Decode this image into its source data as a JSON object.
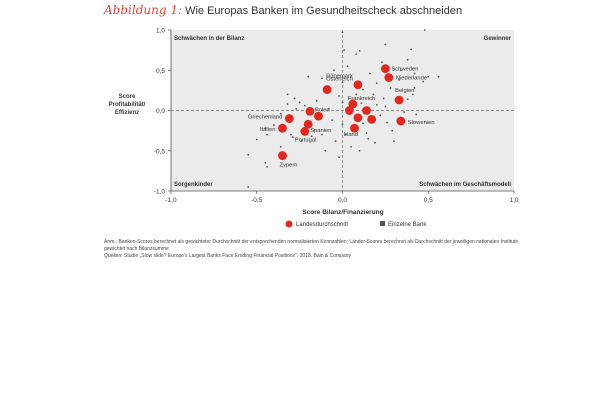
{
  "header": {
    "figure_label": "Abbildung 1:",
    "title": "Wie Europas Banken im Gesundheitscheck abschneiden"
  },
  "notes": {
    "line1": "Anm.: Banken-Scores berechnet als gewichteter Durchschnitt der entsprechenden normalisierten Kennzahlen; Länder-Scores berechnet als Durchschnitt der jeweiligen nationalen Institute, gewichtet nach Bilanzsumme",
    "line2": "Quellen: Studie „Slow slide? Europe's Largest Banks Face Eroding Financial Positions\", 2018, Bain & Company"
  },
  "colors": {
    "plot_bg": "#ebebeb",
    "country": "#e0281e",
    "bank": "#555555",
    "accent": "#e0463c"
  },
  "chart_data": {
    "type": "scatter",
    "xlabel": "Score Bilanz/Finanzierung",
    "ylabel": "Score Profitabilität/ Effizienz",
    "xlim": [
      -1.0,
      1.0
    ],
    "ylim": [
      -1.0,
      1.0
    ],
    "xticks": [
      "-1,0",
      "-0,5",
      "0,0",
      "0,5",
      "1,0"
    ],
    "yticks": [
      "1,0",
      "0,5",
      "0,0",
      "-0,5",
      "-1,0"
    ],
    "quadrant_labels": {
      "top_left": "Schwächen in der Bilanz",
      "top_right": "Gewinner",
      "bottom_left": "Sorgenkinder",
      "bottom_right": "Schwächen im Geschäftsmodell"
    },
    "legend": {
      "countries": "Landesdurchschnitt",
      "banks": "Einzelne Bank"
    },
    "series": [
      {
        "name": "Landesdurchschnitt",
        "points": [
          {
            "label": "Schweden",
            "x": 0.25,
            "y": 0.52
          },
          {
            "label": "Dänemark",
            "x": 0.09,
            "y": 0.32
          },
          {
            "label": "Niederlande",
            "x": 0.27,
            "y": 0.41
          },
          {
            "label": "Österreich",
            "x": -0.09,
            "y": 0.26
          },
          {
            "label": "Belgien",
            "x": 0.33,
            "y": 0.13
          },
          {
            "label": "Frankreich",
            "x": 0.06,
            "y": 0.08
          },
          {
            "label": "Polen",
            "x": -0.19,
            "y": -0.01
          },
          {
            "label": "",
            "x": 0.04,
            "y": 0.0
          },
          {
            "label": "",
            "x": 0.14,
            "y": 0.0
          },
          {
            "label": "Griechenland",
            "x": -0.31,
            "y": -0.1
          },
          {
            "label": "",
            "x": -0.14,
            "y": -0.07
          },
          {
            "label": "",
            "x": 0.09,
            "y": -0.09
          },
          {
            "label": "",
            "x": 0.17,
            "y": -0.11
          },
          {
            "label": "Slowenien",
            "x": 0.34,
            "y": -0.13
          },
          {
            "label": "Italien",
            "x": -0.35,
            "y": -0.22
          },
          {
            "label": "Spanien",
            "x": -0.2,
            "y": -0.17
          },
          {
            "label": "Portugal",
            "x": -0.22,
            "y": -0.26
          },
          {
            "label": "Irland",
            "x": 0.07,
            "y": -0.22
          },
          {
            "label": "Zypern",
            "x": -0.35,
            "y": -0.56
          }
        ]
      },
      {
        "name": "Einzelne Bank",
        "points": [
          {
            "x": 0.0,
            "y": 0.97
          },
          {
            "x": 0.48,
            "y": 1.0
          },
          {
            "x": 0.4,
            "y": 0.76
          },
          {
            "x": 0.25,
            "y": 0.82
          },
          {
            "x": 0.23,
            "y": 0.6
          },
          {
            "x": 0.34,
            "y": 0.5
          },
          {
            "x": 0.42,
            "y": 0.46
          },
          {
            "x": 0.38,
            "y": 0.63
          },
          {
            "x": 0.47,
            "y": 0.36
          },
          {
            "x": 0.5,
            "y": 0.42
          },
          {
            "x": 0.56,
            "y": 0.42
          },
          {
            "x": 0.16,
            "y": 0.46
          },
          {
            "x": 0.12,
            "y": 0.26
          },
          {
            "x": 0.18,
            "y": 0.2
          },
          {
            "x": 0.2,
            "y": 0.34
          },
          {
            "x": 0.28,
            "y": 0.28
          },
          {
            "x": 0.0,
            "y": 0.35
          },
          {
            "x": -0.05,
            "y": 0.5
          },
          {
            "x": 0.01,
            "y": 0.75
          },
          {
            "x": 0.1,
            "y": 0.74
          },
          {
            "x": 0.08,
            "y": 0.7
          },
          {
            "x": -0.2,
            "y": 0.42
          },
          {
            "x": -0.12,
            "y": 0.4
          },
          {
            "x": -0.02,
            "y": 0.18
          },
          {
            "x": 0.0,
            "y": 0.1
          },
          {
            "x": 0.11,
            "y": 0.09
          },
          {
            "x": 0.2,
            "y": 0.07
          },
          {
            "x": 0.25,
            "y": 0.05
          },
          {
            "x": 0.38,
            "y": 0.14
          },
          {
            "x": 0.41,
            "y": 0.2
          },
          {
            "x": 0.42,
            "y": 0.28
          },
          {
            "x": -0.32,
            "y": 0.2
          },
          {
            "x": -0.28,
            "y": 0.15
          },
          {
            "x": -0.25,
            "y": 0.1
          },
          {
            "x": -0.32,
            "y": 0.08
          },
          {
            "x": -0.27,
            "y": 0.02
          },
          {
            "x": -0.22,
            "y": 0.06
          },
          {
            "x": -0.15,
            "y": 0.12
          },
          {
            "x": -0.36,
            "y": -0.04
          },
          {
            "x": -0.4,
            "y": -0.18
          },
          {
            "x": -0.45,
            "y": -0.22
          },
          {
            "x": -0.44,
            "y": -0.3
          },
          {
            "x": -0.5,
            "y": -0.36
          },
          {
            "x": -0.55,
            "y": -0.55
          },
          {
            "x": -0.45,
            "y": -0.65
          },
          {
            "x": -0.44,
            "y": -0.7
          },
          {
            "x": -0.55,
            "y": -0.95
          },
          {
            "x": -0.29,
            "y": -0.33
          },
          {
            "x": -0.24,
            "y": -0.38
          },
          {
            "x": -0.18,
            "y": -0.32
          },
          {
            "x": -0.12,
            "y": -0.3
          },
          {
            "x": -0.1,
            "y": -0.5
          },
          {
            "x": -0.02,
            "y": -0.58
          },
          {
            "x": 0.05,
            "y": -0.45
          },
          {
            "x": 0.1,
            "y": -0.5
          },
          {
            "x": 0.15,
            "y": -0.35
          },
          {
            "x": 0.19,
            "y": -0.4
          },
          {
            "x": 0.26,
            "y": -0.15
          },
          {
            "x": 0.29,
            "y": -0.25
          },
          {
            "x": 0.22,
            "y": -0.06
          },
          {
            "x": 0.12,
            "y": -0.16
          },
          {
            "x": 0.0,
            "y": -0.17
          },
          {
            "x": -0.06,
            "y": -0.12
          },
          {
            "x": 0.36,
            "y": -0.02
          },
          {
            "x": 0.43,
            "y": -0.05
          },
          {
            "x": -0.3,
            "y": -0.3
          },
          {
            "x": -0.36,
            "y": -0.45
          },
          {
            "x": 0.3,
            "y": -0.38
          },
          {
            "x": 0.02,
            "y": -0.3
          },
          {
            "x": -0.08,
            "y": 0.02
          },
          {
            "x": 0.08,
            "y": 0.2
          },
          {
            "x": 0.33,
            "y": 0.38
          },
          {
            "x": 0.03,
            "y": 0.55
          },
          {
            "x": -0.04,
            "y": -0.38
          },
          {
            "x": 0.14,
            "y": -0.28
          },
          {
            "x": -0.2,
            "y": -0.05
          },
          {
            "x": 0.24,
            "y": 0.15
          }
        ]
      }
    ]
  }
}
